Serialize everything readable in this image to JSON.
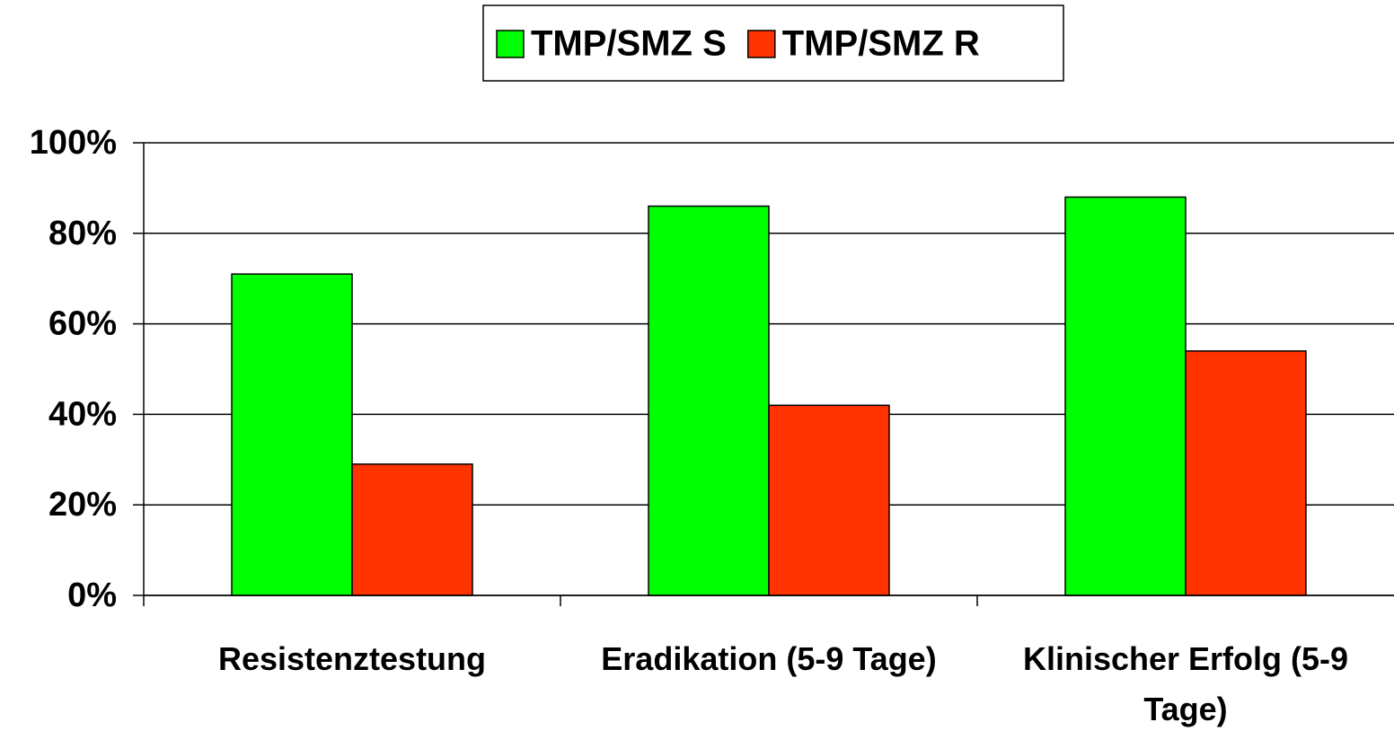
{
  "chart_data": {
    "type": "bar",
    "categories": [
      "Resistenztestung",
      "Eradikation (5-9 Tage)",
      "Klinischer Erfolg (5-9 Tage)"
    ],
    "series": [
      {
        "name": "TMP/SMZ S",
        "color": "#00ff00",
        "values": [
          71,
          86,
          88
        ]
      },
      {
        "name": "TMP/SMZ R",
        "color": "#ff3300",
        "values": [
          29,
          42,
          54
        ]
      }
    ],
    "ylim": [
      0,
      100
    ],
    "yticks": [
      {
        "value": 0,
        "label": "0%"
      },
      {
        "value": 20,
        "label": "20%"
      },
      {
        "value": 40,
        "label": "40%"
      },
      {
        "value": 60,
        "label": "60%"
      },
      {
        "value": 80,
        "label": "80%"
      },
      {
        "value": 100,
        "label": "100%"
      }
    ],
    "grid": true,
    "legend": "top"
  }
}
